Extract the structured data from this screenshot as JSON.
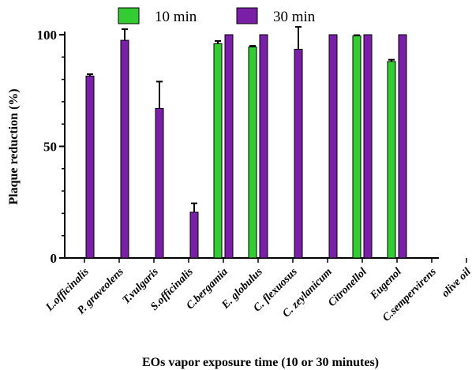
{
  "chart_data": {
    "type": "bar",
    "title": "",
    "xlabel": "EOs vapor exposure time (10 or 30 minutes)",
    "ylabel": "Plaque reduction (%)",
    "ylim": [
      0,
      100
    ],
    "yticks": [
      0,
      50,
      100
    ],
    "legend_position": "top",
    "categories": [
      "L.officinalis",
      "P. graveolens",
      "T.vulgaris",
      "S.officinalis",
      "C.bergamia",
      "E. globulus",
      "C. flexuosus",
      "C. zeylanicum",
      "Citronellol",
      "Eugenol",
      "C.sempervirens",
      "olive oil"
    ],
    "series": [
      {
        "name": "10 min",
        "color": "#33cc33",
        "values": [
          0,
          0,
          0,
          0,
          96,
          94.5,
          0,
          0,
          99.5,
          88,
          0,
          0
        ],
        "errors": [
          0,
          0,
          0,
          0,
          1.2,
          0.5,
          0,
          0,
          0.3,
          0.8,
          0,
          0
        ]
      },
      {
        "name": "30 min",
        "color": "#7a1fa8",
        "values": [
          81.5,
          97.5,
          67,
          20.5,
          100,
          100,
          93.5,
          100,
          100,
          100,
          0,
          0
        ],
        "errors": [
          0.8,
          5,
          12,
          4,
          0,
          0,
          10,
          0,
          0,
          0,
          0,
          0
        ]
      }
    ]
  }
}
